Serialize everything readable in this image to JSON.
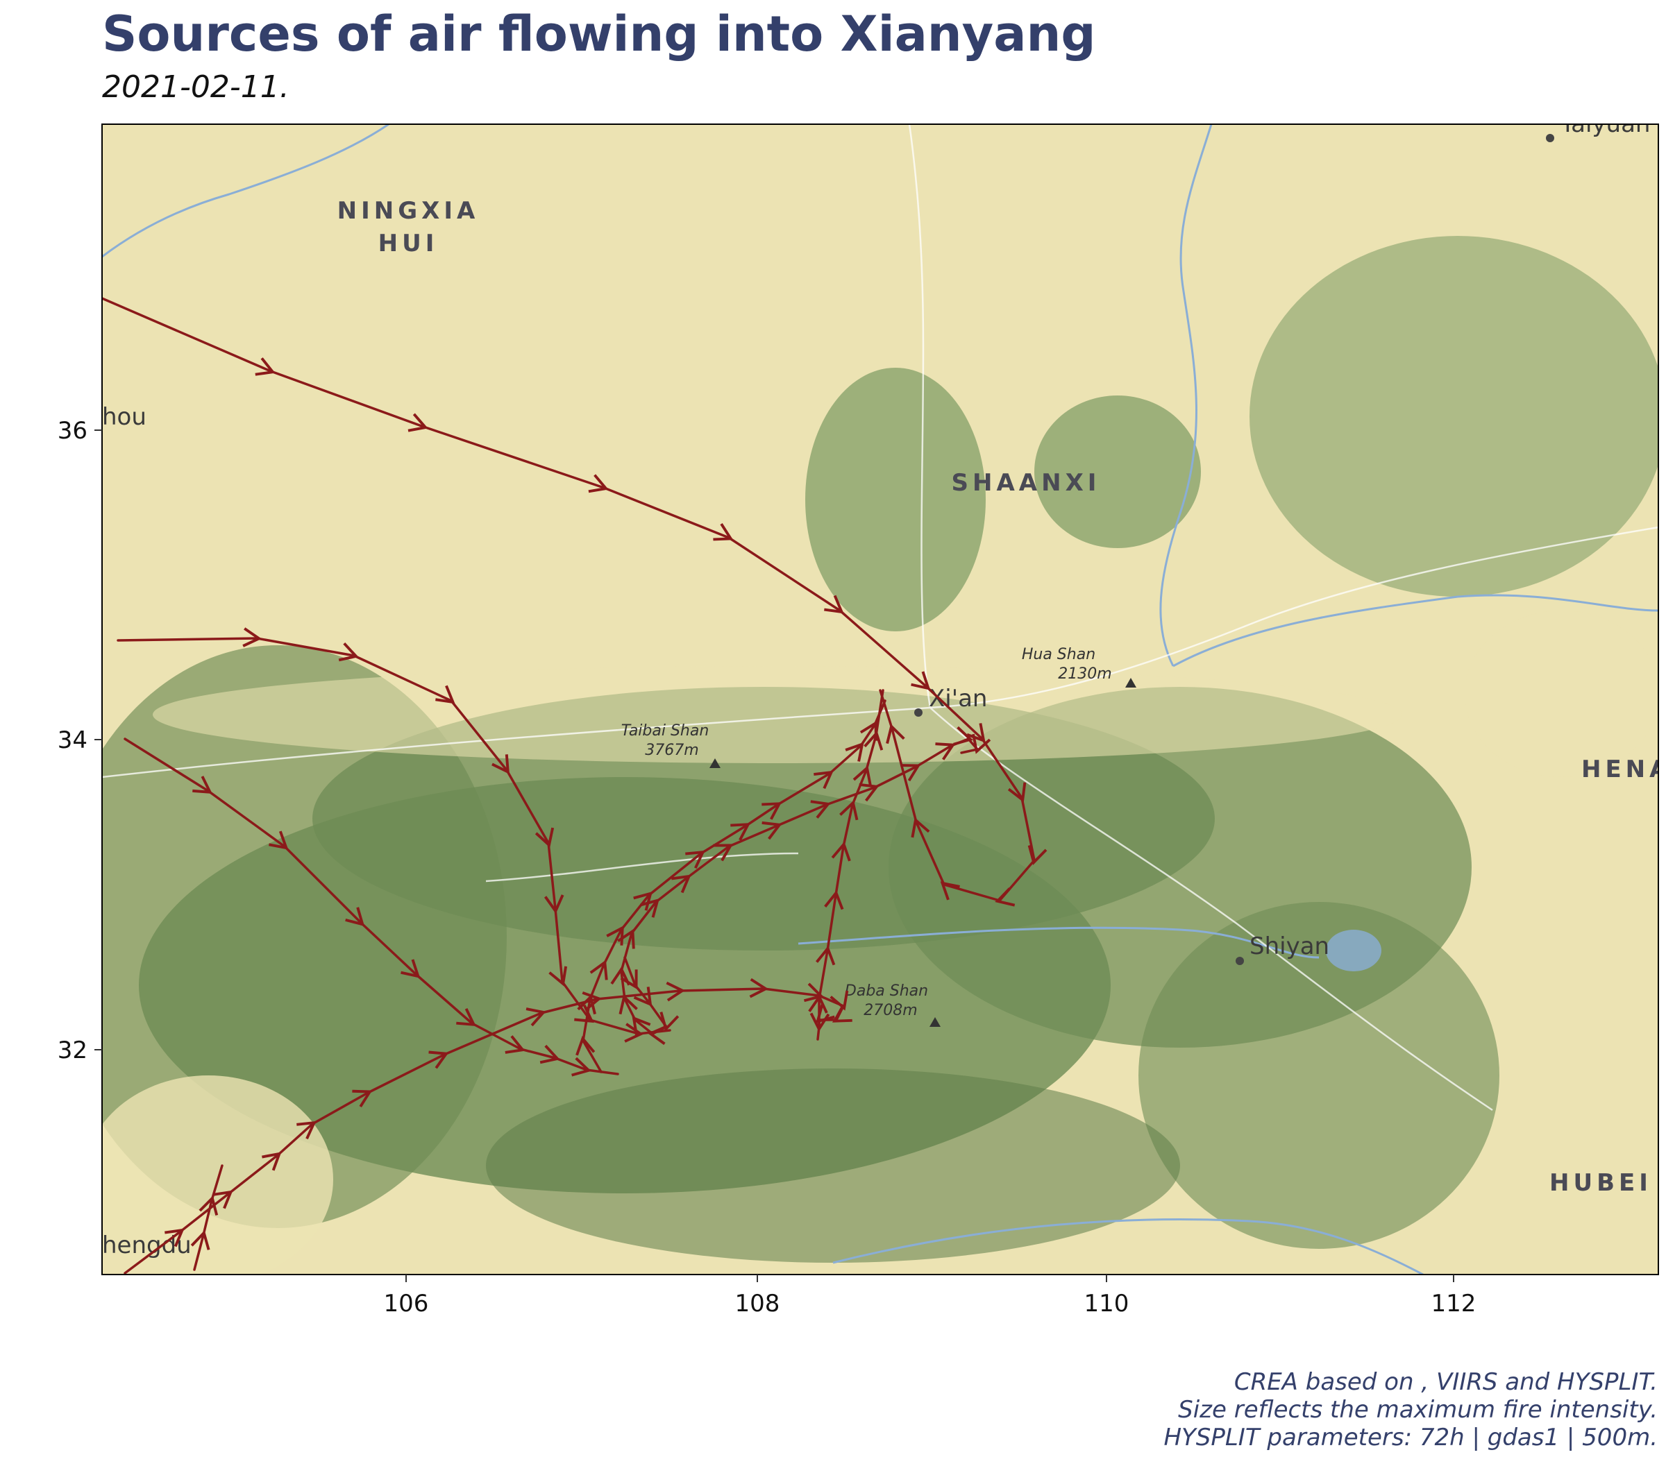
{
  "title": "Sources of air flowing into Xianyang",
  "subtitle": "2021-02-11.",
  "caption": [
    "CREA based on , VIIRS and HYSPLIT.",
    "Size reflects the maximum fire intensity.",
    "HYSPLIT parameters: 72h | gdas1 | 500m."
  ],
  "map": {
    "x_ticks": [
      "106",
      "108",
      "110",
      "112"
    ],
    "y_ticks": [
      "36",
      "34",
      "32"
    ],
    "state_labels": [
      "NINGXIA",
      "HUI",
      "SHAANXI",
      "HENA",
      "HUBEI"
    ],
    "city_labels": [
      "Xi'an",
      "Shiyan",
      "hou",
      "hengdu",
      "Taiyuan"
    ],
    "peaks": [
      {
        "name": "Taibai Shan",
        "elev": "3767m"
      },
      {
        "name": "Hua Shan",
        "elev": "2130m"
      },
      {
        "name": "Daba Shan",
        "elev": "2708m"
      }
    ],
    "colors": {
      "trajectory": "#8b1a1a",
      "lowland": "#ede4b4",
      "mountain": "#6e8c55",
      "river": "#8aaed6"
    }
  }
}
